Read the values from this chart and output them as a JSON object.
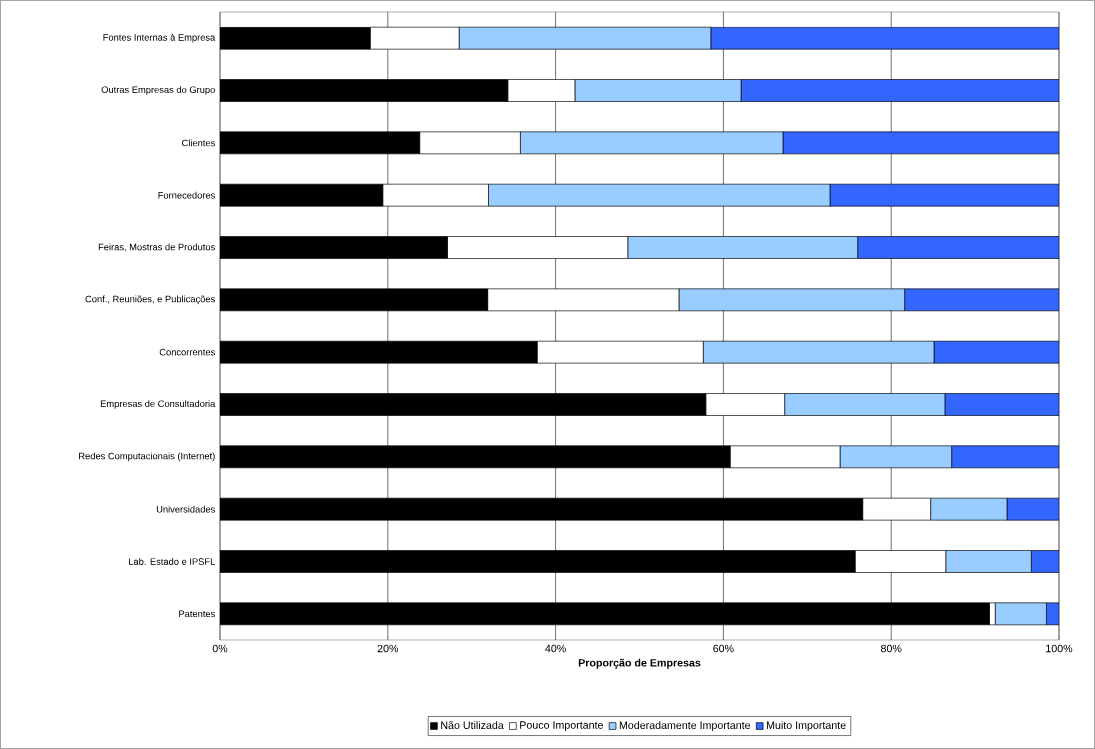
{
  "chart_data": {
    "type": "bar",
    "orientation": "horizontal",
    "stacked": true,
    "xlabel": "Proporção de Empresas",
    "categories": [
      "Fontes Internas à Empresa",
      "Outras Empresas do Grupo",
      "Clientes",
      "Fornecedores",
      "Feiras, Mostras de Produtos",
      "Conf., Reuniões, e Publicações",
      "Concorrentes",
      "Empresas de Consultadoria",
      "Redes Computacionais (Internet)",
      "Universidades",
      "Lab. Estado e IPSFL",
      "Patentes"
    ],
    "series": [
      {
        "name": "Não Utilizada",
        "color": "#000000",
        "values": [
          17.9,
          34.3,
          23.8,
          19.4,
          27.1,
          31.9,
          37.8,
          57.9,
          60.8,
          76.6,
          75.7,
          91.7
        ]
      },
      {
        "name": "Pouco Importante",
        "color": "#ffffff",
        "values": [
          10.6,
          8.0,
          12.0,
          12.6,
          21.5,
          22.8,
          19.8,
          9.4,
          13.1,
          8.1,
          10.8,
          0.7
        ]
      },
      {
        "name": "Moderadamente Importante",
        "color": "#99ccff",
        "values": [
          30.0,
          19.8,
          31.3,
          40.7,
          27.4,
          26.9,
          27.5,
          19.1,
          13.3,
          9.1,
          10.2,
          6.1
        ]
      },
      {
        "name": "Muito Importante",
        "color": "#3366ff",
        "values": [
          41.5,
          37.9,
          32.9,
          27.3,
          24.0,
          18.4,
          14.9,
          13.6,
          12.8,
          6.2,
          3.3,
          1.5
        ]
      }
    ],
    "xlim": [
      0,
      100
    ],
    "xticks": [
      {
        "value": 0,
        "label": "0%"
      },
      {
        "value": 20,
        "label": "20%"
      },
      {
        "value": 40,
        "label": "40%"
      },
      {
        "value": 60,
        "label": "60%"
      },
      {
        "value": 80,
        "label": "80%"
      },
      {
        "value": 100,
        "label": "100%"
      }
    ],
    "grid": "x",
    "legend": "bottom"
  }
}
